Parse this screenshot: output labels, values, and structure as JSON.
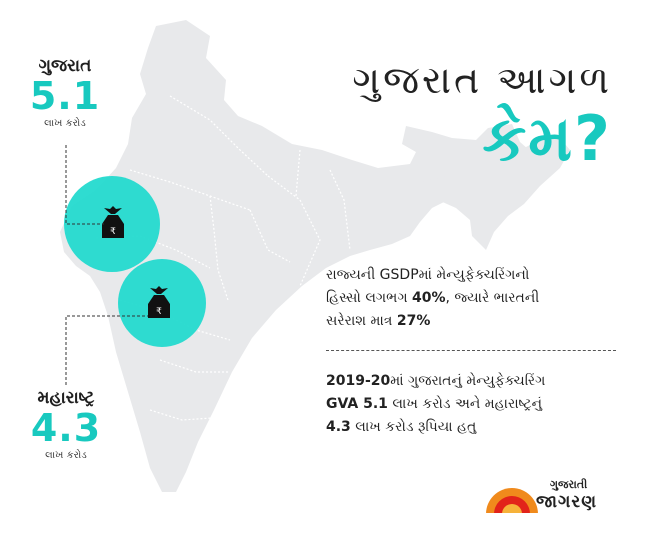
{
  "headline": {
    "line1": "ગુજરાત આગળ",
    "line2": "કેમ?"
  },
  "gujarat": {
    "name": "ગુજરાત",
    "value": "5.1",
    "unit": "લાખ કરોડ"
  },
  "maharashtra": {
    "name": "મહારાષ્ટ્ર",
    "value": "4.3",
    "unit": "લાખ કરોડ"
  },
  "info1": {
    "line1": "રાજ્યની GSDPમાં મેન્યુફેક્ચરિંગનો",
    "line2_pre": "હિસ્સો લગભગ ",
    "line2_bold": "40%",
    "line2_post": ", જ્યારે ભારતની",
    "line3_pre": "સરેરાશ માત્ર ",
    "line3_bold": "27%"
  },
  "info2": {
    "line1_bold": "2019-20",
    "line1_post": "માં ગુજરાતનું મેન્યુફેક્ચરિંગ",
    "line2_bold": "GVA 5.1",
    "line2_post": " લાખ કરોડ અને મહારાષ્ટ્રનું",
    "line3_bold": "4.3",
    "line3_post": " લાખ કરોડ રૂપિયા હતુ"
  },
  "logo": {
    "line1": "ગુજરાતી",
    "line2": "જાગરણ"
  },
  "bag_symbol": "₹",
  "colors": {
    "accent": "#18c9bf",
    "map": "#e8e9eb",
    "text": "#1c1c1c",
    "logo_orange": "#f08a1c",
    "logo_red": "#e2231a"
  }
}
